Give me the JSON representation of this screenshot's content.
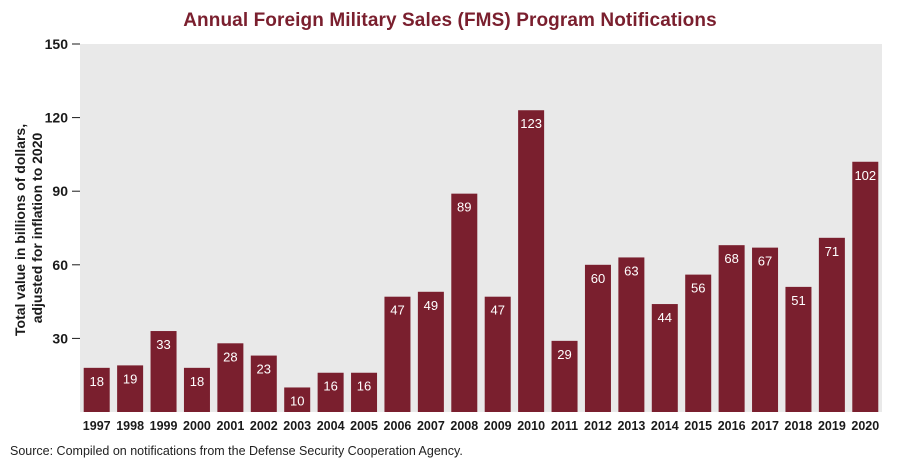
{
  "chart_data": {
    "type": "bar",
    "title": "Annual Foreign Military Sales (FMS) Program Notifications",
    "ylabel_line1": "Total value in billions of dollars,",
    "ylabel_line2": "adjusted for inflation to 2020",
    "xlabel": "",
    "ylim": [
      0,
      150
    ],
    "yticks": [
      30,
      60,
      90,
      120,
      150
    ],
    "grid": false,
    "categories": [
      "1997",
      "1998",
      "1999",
      "2000",
      "2001",
      "2002",
      "2003",
      "2004",
      "2005",
      "2006",
      "2007",
      "2008",
      "2009",
      "2010",
      "2011",
      "2012",
      "2013",
      "2014",
      "2015",
      "2016",
      "2017",
      "2018",
      "2019",
      "2020"
    ],
    "values": [
      18,
      19,
      33,
      18,
      28,
      23,
      10,
      16,
      16,
      47,
      49,
      89,
      47,
      123,
      29,
      60,
      63,
      44,
      56,
      68,
      67,
      51,
      71,
      102
    ]
  },
  "source": "Source: Compiled on notifications from the Defense Security Cooperation Agency.",
  "colors": {
    "bar": "#7a1f2e",
    "plot_background": "#e9e9e9",
    "title": "#7a1f2e",
    "bar_label": "#ffffff"
  }
}
